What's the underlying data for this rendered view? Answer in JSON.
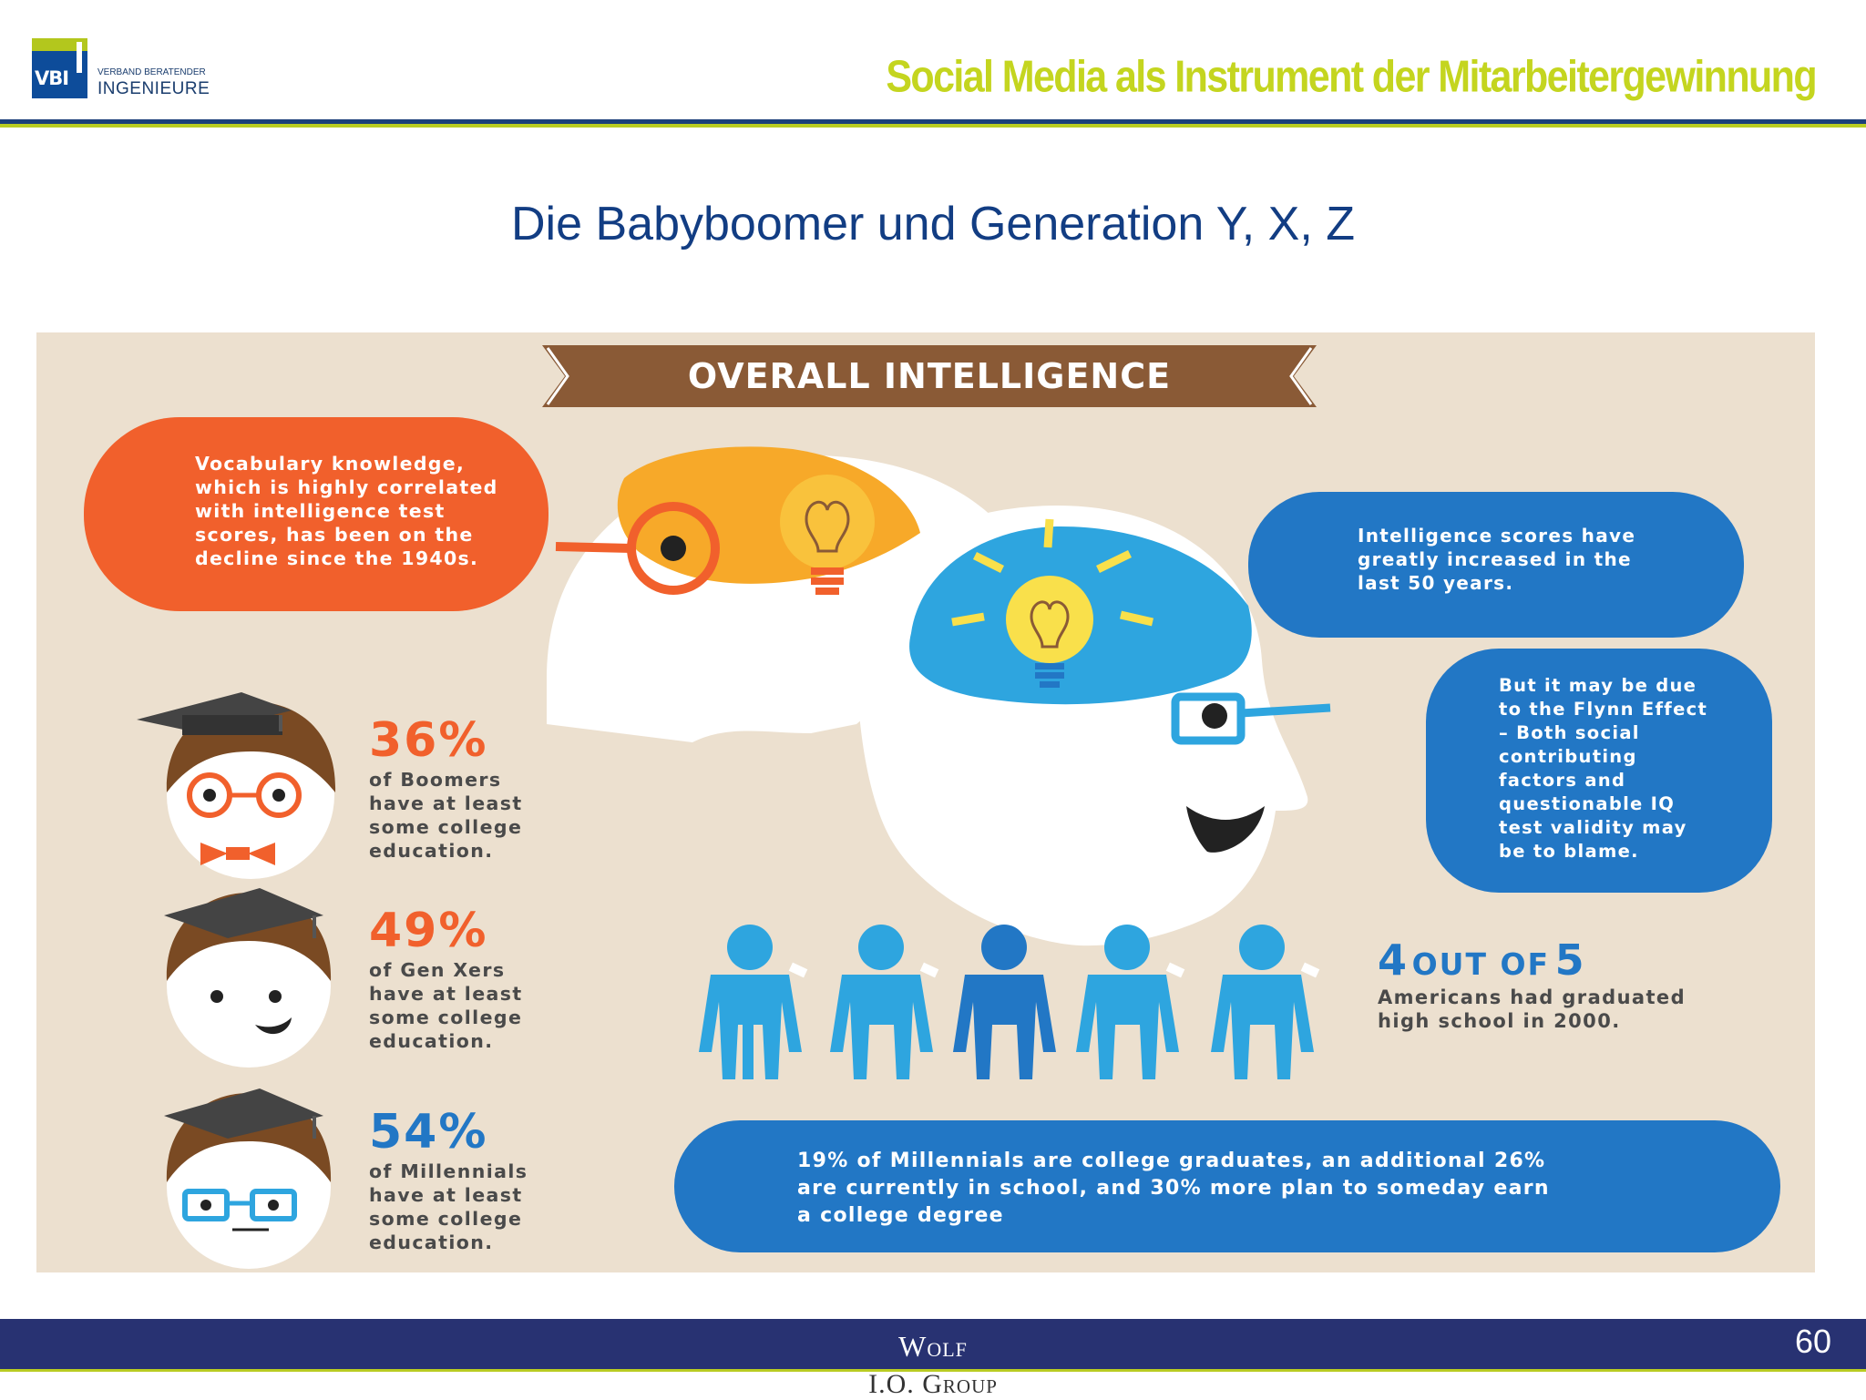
{
  "header": {
    "logo_abbr": "VBI",
    "logo_line1": "VERBAND BERATENDER",
    "logo_line2": "INGENIEURE",
    "title": "Social Media als Instrument der Mitarbeitergewinnung"
  },
  "slide": {
    "title": "Die Babyboomer und Generation Y, X, Z"
  },
  "infographic": {
    "banner": "OVERALL INTELLIGENCE",
    "vocabulary_bubble": [
      "Vocabulary knowledge,",
      "which is highly correlated",
      "with intelligence test",
      "scores, has been on the",
      "decline since the 1940s."
    ],
    "scores_bubble": [
      "Intelligence scores have",
      "greatly increased in the",
      "last 50 years."
    ],
    "flynn_bubble": [
      "But it may be due",
      "to the Flynn Effect",
      "–  Both social",
      "contributing",
      "factors and",
      "questionable IQ",
      "test validity may",
      "be to blame."
    ],
    "stats": [
      {
        "percent": "36%",
        "lines": [
          "of Boomers",
          "have at least",
          "some college",
          "education."
        ]
      },
      {
        "percent": "49%",
        "lines": [
          "of Gen Xers",
          "have at least",
          "some college",
          "education."
        ]
      },
      {
        "percent": "54%",
        "lines": [
          "of Millennials",
          "have at least",
          "some college",
          "education."
        ]
      }
    ],
    "graduates": {
      "count": "4",
      "out_of": "OUT OF",
      "total": "5",
      "lines": [
        "Americans had graduated",
        "high school in 2000."
      ]
    },
    "millennials_bubble": [
      "19% of Millennials are college graduates, an additional 26%",
      "are currently in school, and 30% more plan to someday earn",
      "a college degree"
    ],
    "colors": {
      "background": "#ece0cf",
      "orange": "#f1602c",
      "blue": "#2277c5",
      "light_blue": "#2ea5df",
      "brown": "#8a5a36"
    }
  },
  "footer": {
    "name": "Wolf",
    "sub": "I.O. Group",
    "page_number": "60"
  }
}
